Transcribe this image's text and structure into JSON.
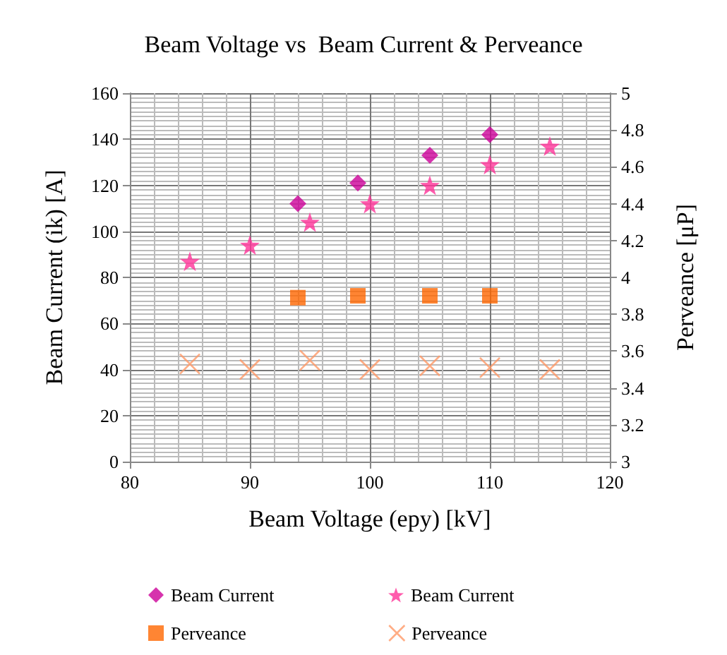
{
  "chart_data": {
    "type": "scatter",
    "title": "Beam Voltage vs  Beam Current & Perveance",
    "xlabel": "Beam Voltage (epy) [kV]",
    "ylabel": "Beam Current (ik) [A]",
    "y2label": "Perveance [μP]",
    "xlim": [
      80,
      120
    ],
    "xticks": [
      80,
      90,
      100,
      110,
      120
    ],
    "ylim": [
      0,
      160
    ],
    "yticks": [
      0,
      20,
      40,
      60,
      80,
      100,
      120,
      140,
      160
    ],
    "y2lim": [
      3,
      5
    ],
    "y2ticks": [
      3,
      3.2,
      3.4,
      3.6,
      3.8,
      4,
      4.2,
      4.4,
      4.6,
      4.8,
      5
    ],
    "grid": true,
    "legend": "bottom",
    "series": [
      {
        "name": "Beam Current",
        "color": "#cc0099",
        "marker": "diamond",
        "x": [
          94,
          99,
          105,
          110
        ],
        "values": [
          112,
          121,
          133,
          142
        ]
      },
      {
        "name": "Beam Current",
        "color": "#ff3399",
        "marker": "star",
        "x": [
          85,
          90,
          95,
          100,
          105,
          110,
          115
        ],
        "values": [
          87,
          94,
          104,
          112,
          120,
          129,
          137
        ]
      },
      {
        "name": "Perveance",
        "color": "#ff6600",
        "marker": "square",
        "axis": "y2",
        "x": [
          94,
          99,
          105,
          110
        ],
        "values": [
          3.89,
          3.9,
          3.9,
          3.9
        ]
      },
      {
        "name": "Perveance",
        "color": "#ff9966",
        "marker": "cross",
        "axis": "y2",
        "x": [
          85,
          90,
          95,
          100,
          105,
          110,
          115
        ],
        "values": [
          3.53,
          3.5,
          3.55,
          3.5,
          3.52,
          3.51,
          3.5
        ]
      }
    ]
  }
}
